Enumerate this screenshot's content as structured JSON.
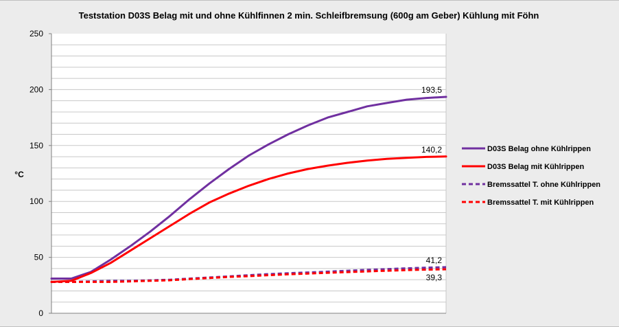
{
  "chart_data": {
    "type": "line",
    "title": "Teststation   D03S  Belag mit und ohne Kühlfinnen    2 min. Schleifbremsung (600g am Geber) Kühlung mit Föhn",
    "xlabel": "",
    "ylabel": "°C",
    "ylim": [
      0,
      250
    ],
    "yticks": [
      "0",
      "50",
      "100",
      "150",
      "200",
      "250"
    ],
    "grid": true,
    "legend_position": "right",
    "x": [
      0,
      5,
      10,
      15,
      20,
      25,
      30,
      35,
      40,
      45,
      50,
      55,
      60,
      65,
      70,
      75,
      80,
      85,
      90,
      95,
      100
    ],
    "series": [
      {
        "name": "D03S Belag  ohne Kühlrippen",
        "color": "#7030a0",
        "dash": "solid",
        "values": [
          31,
          31,
          37,
          48,
          60,
          73,
          87,
          102,
          116,
          129,
          141,
          151,
          160,
          168,
          175,
          180,
          185,
          188,
          191,
          192.5,
          193.5
        ],
        "end_label": "193,5"
      },
      {
        "name": "D03S Belag  mit Kühlrippen",
        "color": "#ff0000",
        "dash": "solid",
        "values": [
          28,
          29,
          36,
          45,
          56,
          67,
          78,
          89,
          99,
          107,
          114,
          120,
          125,
          129,
          132,
          134.5,
          136.5,
          138,
          139,
          139.8,
          140.2
        ],
        "end_label": "140,2"
      },
      {
        "name": "Bremssattel T. ohne Kühlrippen",
        "color": "#7030a0",
        "dash": "dashed",
        "values": [
          28,
          28,
          28.5,
          29,
          29,
          29.5,
          30,
          31,
          32,
          33,
          34,
          35,
          35.8,
          36.5,
          37.2,
          38,
          38.8,
          39.5,
          40.2,
          40.8,
          41.2
        ],
        "end_label": "41,2"
      },
      {
        "name": "Bremssattel T. mit Kühlrippen",
        "color": "#ff0000",
        "dash": "dashed",
        "values": [
          28,
          28,
          28,
          28,
          28.5,
          29,
          29.5,
          30.5,
          31.5,
          32.5,
          33.2,
          34,
          34.8,
          35.5,
          36.2,
          36.8,
          37.4,
          38,
          38.6,
          39,
          39.3
        ],
        "end_label": "39,3"
      }
    ]
  }
}
